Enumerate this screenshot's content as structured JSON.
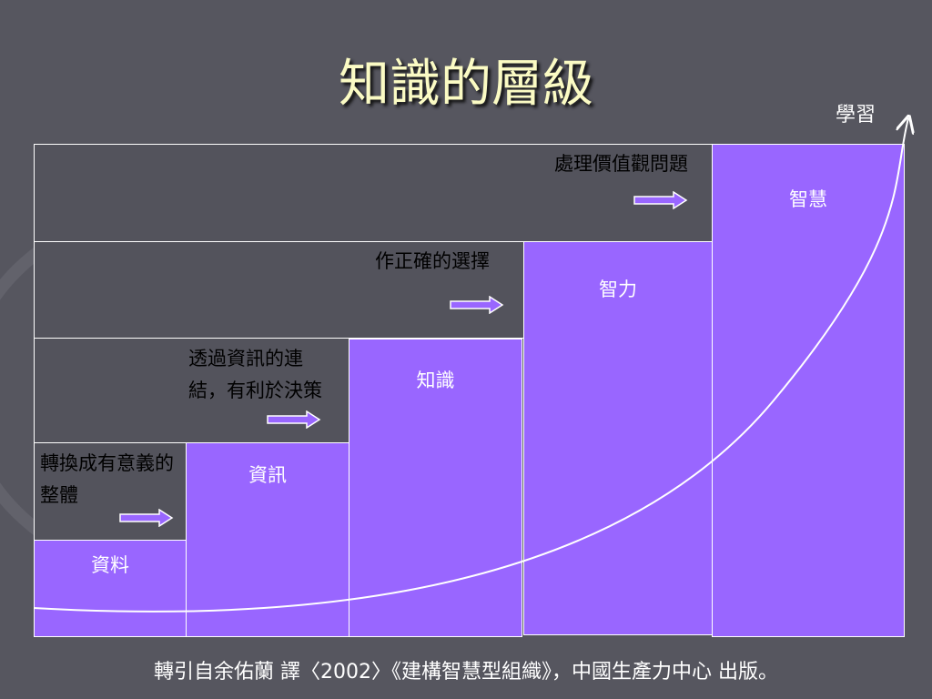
{
  "title": "知識的層級",
  "learning_label": "學習",
  "levels": {
    "data": "資料",
    "information": "資訊",
    "knowledge": "知識",
    "intelligence": "智力",
    "wisdom": "智慧"
  },
  "transitions": {
    "data_to_info": "轉換成有意義的整體",
    "info_to_knowledge": "透過資訊的連結，有利於決策",
    "knowledge_to_intelligence": "作正確的選擇",
    "intelligence_to_wisdom": "處理價值觀問題"
  },
  "footer": "轉引自余佑蘭 譯〈2002〉《建構智慧型組織》，中國生產力中心 出版。",
  "colors": {
    "background": "#56565f",
    "level_fill": "#9966ff",
    "title": "#fbfbc4"
  }
}
